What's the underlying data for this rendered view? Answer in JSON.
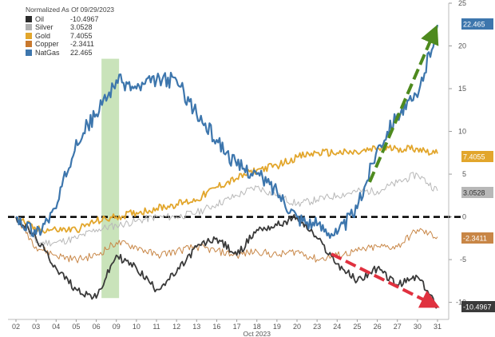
{
  "chart_data": {
    "type": "line",
    "legend_title": "Normalized As Of 09/29/2023",
    "xlabel": "Oct 2023",
    "x": [
      "02",
      "03",
      "04",
      "05",
      "06",
      "09",
      "10",
      "11",
      "12",
      "13",
      "16",
      "17",
      "18",
      "19",
      "20",
      "23",
      "24",
      "25",
      "26",
      "27",
      "30",
      "31"
    ],
    "y_ticks": [
      25,
      20,
      15,
      10,
      5,
      0,
      -5,
      -10
    ],
    "ylim": [
      -12,
      25
    ],
    "legend_position": "top-left",
    "series": [
      {
        "name": "Oil",
        "last_label": "-10.4967",
        "color": "#3a3a3a",
        "values": [
          0,
          -2.5,
          -6,
          -8.5,
          -9.5,
          -4.5,
          -6,
          -8.5,
          -6.5,
          -3.5,
          -2.5,
          -4.5,
          -1.5,
          -1,
          0,
          -2.5,
          -5.5,
          -7.5,
          -6,
          -8,
          -7,
          -10.4967
        ]
      },
      {
        "name": "Silver",
        "last_label": "3.0528",
        "color": "#b8b8b8",
        "values": [
          0,
          -3,
          -3,
          -2.5,
          -1.5,
          -1,
          -0.5,
          0,
          0,
          0.5,
          1.5,
          2.5,
          3.5,
          2.5,
          1.5,
          2,
          2.5,
          3,
          3,
          4,
          5,
          3.0528
        ]
      },
      {
        "name": "Gold",
        "last_label": "7.4055",
        "color": "#e2a62c",
        "values": [
          0,
          -1.5,
          -1.5,
          -1.5,
          -0.5,
          0,
          0.5,
          1,
          1.5,
          2,
          3.5,
          4.5,
          5.5,
          6,
          7,
          7.5,
          7.5,
          7.5,
          8,
          8,
          8,
          7.4055
        ]
      },
      {
        "name": "Copper",
        "last_label": "-2.3411",
        "color": "#c88646",
        "values": [
          0,
          -3.5,
          -4.5,
          -5,
          -4.5,
          -3,
          -3.5,
          -4.5,
          -4,
          -3.5,
          -4,
          -4.5,
          -4,
          -4.5,
          -4,
          -5,
          -4.5,
          -4,
          -3.5,
          -3.5,
          -1.5,
          -2.3411
        ]
      },
      {
        "name": "NatGas",
        "last_label": "22.465",
        "color": "#3d76ad",
        "values": [
          0,
          -2,
          1,
          9,
          12,
          16,
          15,
          16,
          16,
          12,
          9,
          6,
          5,
          3,
          0,
          -1,
          -2,
          1,
          8,
          12,
          14,
          22.465
        ]
      }
    ]
  }
}
